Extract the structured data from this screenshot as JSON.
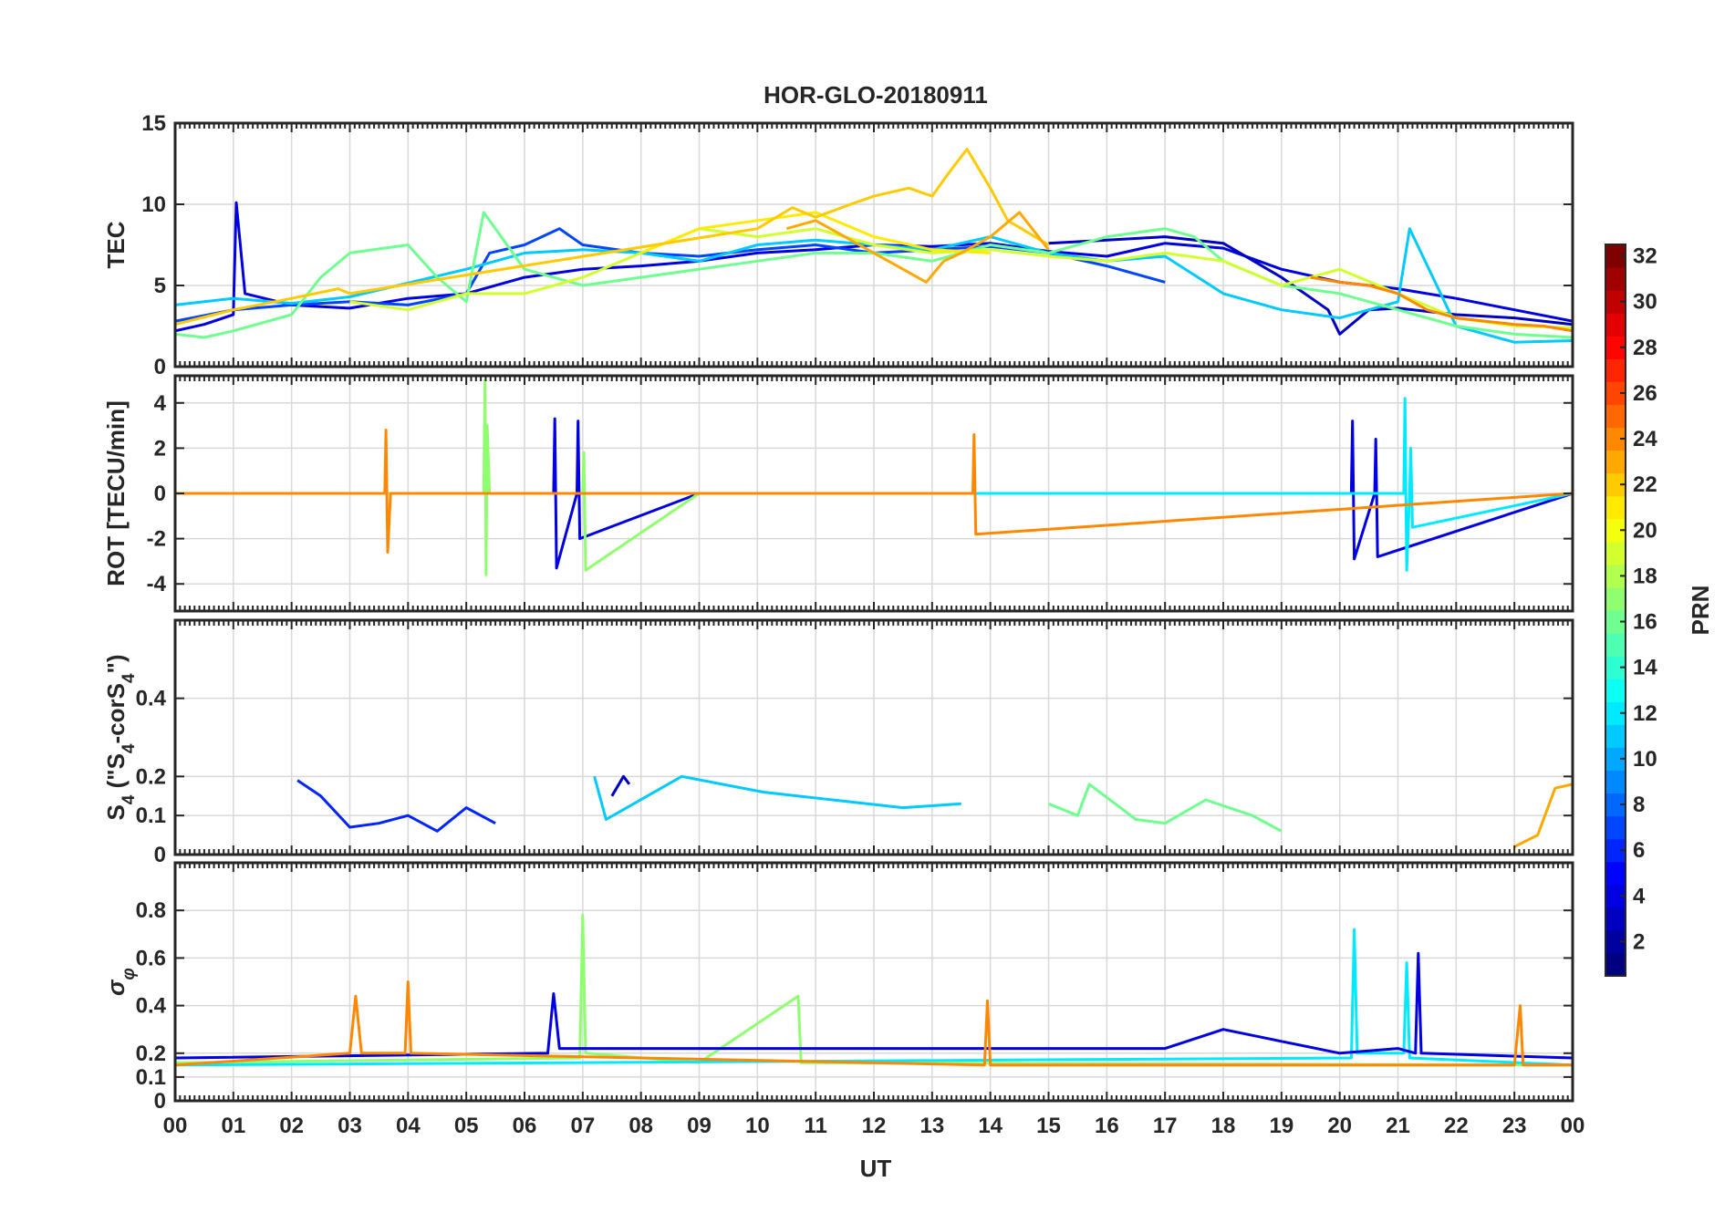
{
  "chart_data": {
    "type": "line",
    "title": "HOR-GLO-20180911",
    "xlabel": "UT",
    "x_tick_labels": [
      "00",
      "01",
      "02",
      "03",
      "04",
      "05",
      "06",
      "07",
      "08",
      "09",
      "10",
      "11",
      "12",
      "13",
      "14",
      "15",
      "16",
      "17",
      "18",
      "19",
      "20",
      "21",
      "22",
      "23",
      "00"
    ],
    "xlim": [
      0,
      24
    ],
    "grid": true,
    "colorbar": {
      "label": "PRN",
      "range": [
        1,
        32
      ],
      "ticks": [
        2,
        4,
        6,
        8,
        10,
        12,
        14,
        16,
        18,
        20,
        22,
        24,
        26,
        28,
        30,
        32
      ],
      "colormap": "jet",
      "placement": "right"
    },
    "panels": [
      {
        "name": "tec",
        "ylabel": "TEC",
        "ylim": [
          0,
          15
        ],
        "yticks": [
          0,
          5,
          10,
          15
        ],
        "series": [
          {
            "prn": 4,
            "x": [
              0,
              0.5,
              1.0,
              1.05,
              1.2,
              2,
              3,
              4,
              5,
              6,
              7,
              8,
              9,
              10,
              11,
              12,
              13,
              14,
              15,
              16,
              17,
              18,
              19,
              20,
              21,
              22,
              23,
              24
            ],
            "y": [
              2.2,
              2.6,
              3.2,
              10.1,
              4.5,
              3.8,
              3.6,
              4.2,
              4.5,
              5.5,
              6.0,
              6.2,
              6.5,
              7.0,
              7.2,
              7.5,
              7.4,
              7.6,
              7.1,
              6.8,
              7.6,
              7.3,
              6.0,
              5.2,
              4.8,
              4.2,
              3.5,
              2.8
            ]
          },
          {
            "prn": 3,
            "x": [
              15,
              16,
              17,
              18,
              19,
              19.8,
              20,
              20.5,
              21,
              22,
              23,
              24
            ],
            "y": [
              7.6,
              7.8,
              8.0,
              7.6,
              5.5,
              3.5,
              2.0,
              3.5,
              3.6,
              3.2,
              3.0,
              2.6
            ]
          },
          {
            "prn": 7,
            "x": [
              0,
              1,
              2,
              3,
              4,
              5,
              5.4,
              6,
              6.6,
              7,
              8,
              9,
              10,
              11,
              12,
              13,
              14,
              15,
              16,
              17
            ],
            "y": [
              2.8,
              3.5,
              3.8,
              4.0,
              3.8,
              4.5,
              7.0,
              7.5,
              8.5,
              7.5,
              7.0,
              6.8,
              7.2,
              7.5,
              7.0,
              7.2,
              7.4,
              7.0,
              6.2,
              5.2
            ]
          },
          {
            "prn": 11,
            "x": [
              0,
              1,
              2,
              3,
              5,
              6,
              7,
              8,
              9,
              10,
              11,
              12,
              13,
              14,
              15,
              16,
              17,
              18,
              19,
              20,
              21,
              21.2,
              22,
              23,
              24
            ],
            "y": [
              3.8,
              4.2,
              3.9,
              4.3,
              6.0,
              7.0,
              7.2,
              7.0,
              6.5,
              7.5,
              7.8,
              7.5,
              7.2,
              8.0,
              7.0,
              6.5,
              6.8,
              4.5,
              3.5,
              3.0,
              4.0,
              8.5,
              2.5,
              1.5,
              1.6
            ]
          },
          {
            "prn": 16,
            "x": [
              0,
              0.5,
              1,
              2,
              2.5,
              3,
              4,
              4.5,
              5,
              5.3,
              6,
              7,
              8,
              9,
              10,
              11,
              12,
              13,
              14,
              15,
              16,
              17,
              17.5,
              18,
              19,
              20,
              21,
              22,
              23,
              24
            ],
            "y": [
              2.0,
              1.8,
              2.2,
              3.2,
              5.5,
              7.0,
              7.5,
              5.5,
              4.0,
              9.5,
              6.0,
              5.0,
              5.5,
              6.0,
              6.5,
              7.0,
              7.0,
              6.5,
              7.5,
              7.0,
              8.0,
              8.5,
              8.0,
              6.5,
              5.0,
              4.5,
              3.5,
              2.5,
              2.0,
              1.8
            ]
          },
          {
            "prn": 19,
            "x": [
              3,
              4,
              5,
              6,
              7,
              8,
              9,
              10,
              11,
              12,
              13,
              14,
              15,
              16,
              17,
              18,
              19,
              20,
              21,
              22,
              23,
              24
            ],
            "y": [
              4.0,
              3.5,
              4.5,
              4.5,
              5.5,
              7.0,
              8.5,
              8.0,
              8.5,
              7.5,
              7.0,
              7.2,
              6.8,
              6.5,
              7.0,
              6.5,
              5.0,
              6.0,
              4.5,
              3.0,
              2.5,
              2.4
            ]
          },
          {
            "prn": 21,
            "x": [
              8,
              9,
              10,
              11,
              12,
              13,
              14
            ],
            "y": [
              7.0,
              8.5,
              9.0,
              9.5,
              8.0,
              7.2,
              7.0
            ]
          },
          {
            "prn": 22,
            "x": [
              0,
              1,
              2,
              2.8,
              3.0,
              10,
              10.6,
              11,
              11.6,
              12,
              12.6,
              13,
              13.3,
              13.6,
              14,
              14.3,
              15
            ],
            "y": [
              2.6,
              3.5,
              4.2,
              4.8,
              4.5,
              8.5,
              9.8,
              9.2,
              10.0,
              10.5,
              11.0,
              10.5,
              12.0,
              13.4,
              11.0,
              9.0,
              7.5
            ]
          },
          {
            "prn": 23,
            "x": [
              10.5,
              11,
              11.5,
              12,
              12.5,
              12.9,
              13.2,
              13.5,
              14,
              14.5,
              15
            ],
            "y": [
              8.5,
              9.0,
              8.0,
              7.0,
              6.0,
              5.2,
              6.5,
              7.0,
              8.0,
              9.5,
              7.2
            ]
          },
          {
            "prn": 24,
            "x": [
              19.5,
              20,
              20.5,
              21,
              21.5,
              22,
              22.5,
              23,
              23.5,
              24
            ],
            "y": [
              5.5,
              5.2,
              5.0,
              4.5,
              3.5,
              3.0,
              2.8,
              2.6,
              2.5,
              2.2
            ]
          }
        ]
      },
      {
        "name": "rot",
        "ylabel": "ROT [TECU/min]",
        "ylim": [
          -5.2,
          5.2
        ],
        "yticks": [
          -4,
          -2,
          0,
          2,
          4
        ],
        "series": [
          {
            "prn": 4,
            "x": [
              0,
              6.5,
              6.52,
              6.55,
              6.9,
              6.92,
              6.95,
              9,
              20.2,
              20.22,
              20.25,
              20.6,
              20.62,
              20.65,
              24
            ],
            "y": [
              0,
              0,
              3.3,
              -3.3,
              0,
              3.2,
              -2.0,
              0,
              0,
              3.2,
              -2.9,
              0,
              2.4,
              -2.8,
              0
            ]
          },
          {
            "prn": 12,
            "x": [
              0,
              21.1,
              21.12,
              21.15,
              21.2,
              21.22,
              21.25,
              24
            ],
            "y": [
              0,
              0,
              4.2,
              -3.4,
              0,
              2.0,
              -1.5,
              0
            ]
          },
          {
            "prn": 17,
            "x": [
              0,
              5.3,
              5.32,
              5.34,
              5.36,
              5.4,
              7,
              7.02,
              7.05,
              9
            ],
            "y": [
              0,
              0,
              5.0,
              -3.6,
              3.0,
              0,
              0,
              1.8,
              -3.4,
              0
            ]
          },
          {
            "prn": 24,
            "x": [
              0,
              3.6,
              3.62,
              3.65,
              3.7,
              13.7,
              13.72,
              13.75,
              24
            ],
            "y": [
              0,
              0,
              2.8,
              -2.6,
              0,
              0,
              2.6,
              -1.8,
              0
            ]
          }
        ]
      },
      {
        "name": "s4",
        "ylabel": "S4 (\"S4-corS4\")",
        "ylim": [
          0,
          0.6
        ],
        "yticks": [
          0,
          0.1,
          0.2,
          0.4
        ],
        "series": [
          {
            "prn": 6,
            "x": [
              2.1,
              2.5,
              3,
              3.5,
              4,
              4.5,
              5,
              5.5
            ],
            "y": [
              0.19,
              0.15,
              0.07,
              0.08,
              0.1,
              0.06,
              0.12,
              0.08
            ]
          },
          {
            "prn": 3,
            "x": [
              7.5,
              7.7,
              7.8
            ],
            "y": [
              0.15,
              0.2,
              0.18
            ]
          },
          {
            "prn": 11,
            "x": [
              7.2,
              7.4,
              8.7,
              10.1,
              12.5,
              13.5
            ],
            "y": [
              0.2,
              0.09,
              0.2,
              0.16,
              0.12,
              0.13
            ]
          },
          {
            "prn": 16,
            "x": [
              15,
              15.5,
              15.7,
              16.5,
              17,
              17.7,
              18.5,
              19
            ],
            "y": [
              0.13,
              0.1,
              0.18,
              0.09,
              0.08,
              0.14,
              0.1,
              0.06
            ]
          },
          {
            "prn": 23,
            "x": [
              23,
              23.4,
              23.7,
              24
            ],
            "y": [
              0.02,
              0.05,
              0.17,
              0.18
            ]
          }
        ]
      },
      {
        "name": "sigma_phi",
        "ylabel": "σ φ",
        "ylim": [
          0,
          1.0
        ],
        "yticks": [
          0,
          0.1,
          0.2,
          0.4,
          0.6,
          0.8
        ],
        "series": [
          {
            "prn": 17,
            "x": [
              0,
              6.95,
              7.0,
              7.05,
              9,
              10.7,
              10.75,
              24
            ],
            "y": [
              0.16,
              0.18,
              0.78,
              0.2,
              0.16,
              0.44,
              0.16,
              0.15
            ]
          },
          {
            "prn": 12,
            "x": [
              0,
              20.2,
              20.25,
              20.3,
              21.1,
              21.15,
              21.2,
              24
            ],
            "y": [
              0.15,
              0.18,
              0.72,
              0.2,
              0.2,
              0.58,
              0.18,
              0.15
            ]
          },
          {
            "prn": 4,
            "x": [
              0,
              6.4,
              6.5,
              6.6,
              17,
              18,
              19,
              20,
              21,
              21.3,
              21.35,
              21.4,
              24
            ],
            "y": [
              0.18,
              0.2,
              0.45,
              0.22,
              0.22,
              0.3,
              0.25,
              0.2,
              0.22,
              0.2,
              0.62,
              0.2,
              0.18
            ]
          },
          {
            "prn": 24,
            "x": [
              0,
              3.0,
              3.1,
              3.2,
              3.95,
              4.0,
              4.05,
              13.9,
              13.95,
              14.0,
              23,
              23.1,
              23.15,
              24
            ],
            "y": [
              0.15,
              0.2,
              0.44,
              0.2,
              0.2,
              0.5,
              0.2,
              0.15,
              0.42,
              0.15,
              0.15,
              0.4,
              0.15,
              0.15
            ]
          }
        ]
      }
    ]
  }
}
